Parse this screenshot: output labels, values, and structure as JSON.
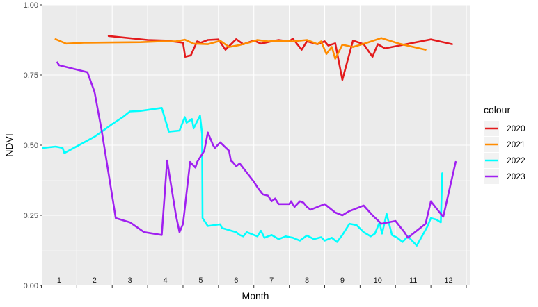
{
  "chart_data": {
    "type": "line",
    "xlabel": "Month",
    "ylabel": "NDVI",
    "ylim": [
      0,
      1
    ],
    "y_ticks": [
      "0.00",
      "0.25",
      "0.50",
      "0.75",
      "1.00"
    ],
    "y_tick_values": [
      0,
      0.25,
      0.5,
      0.75,
      1.0
    ],
    "x_range": [
      0.55,
      12.5
    ],
    "x_ticks": [
      "1",
      "2",
      "3",
      "4",
      "5",
      "6",
      "7",
      "8",
      "9",
      "10",
      "11",
      "12"
    ],
    "x_tick_values": [
      1,
      2,
      3,
      4,
      5,
      6,
      7,
      8,
      9,
      10,
      11,
      12
    ],
    "grid": true,
    "legend": {
      "title": "colour",
      "position": "right"
    },
    "series": [
      {
        "name": "2020",
        "color": "#E31A1C",
        "points": [
          [
            2.4,
            0.889
          ],
          [
            3.5,
            0.875
          ],
          [
            4.0,
            0.873
          ],
          [
            4.5,
            0.865
          ],
          [
            4.56,
            0.815
          ],
          [
            4.72,
            0.82
          ],
          [
            4.9,
            0.87
          ],
          [
            5.0,
            0.865
          ],
          [
            5.2,
            0.875
          ],
          [
            5.5,
            0.877
          ],
          [
            5.7,
            0.84
          ],
          [
            6.0,
            0.878
          ],
          [
            6.2,
            0.86
          ],
          [
            6.5,
            0.873
          ],
          [
            6.7,
            0.862
          ],
          [
            7.0,
            0.87
          ],
          [
            7.2,
            0.875
          ],
          [
            7.5,
            0.87
          ],
          [
            7.6,
            0.88
          ],
          [
            7.85,
            0.84
          ],
          [
            8.0,
            0.87
          ],
          [
            8.3,
            0.86
          ],
          [
            8.5,
            0.87
          ],
          [
            8.6,
            0.855
          ],
          [
            8.8,
            0.863
          ],
          [
            9.0,
            0.733
          ],
          [
            9.3,
            0.873
          ],
          [
            9.6,
            0.86
          ],
          [
            9.85,
            0.815
          ],
          [
            10.0,
            0.86
          ],
          [
            10.2,
            0.845
          ],
          [
            10.6,
            0.855
          ],
          [
            11.5,
            0.877
          ],
          [
            12.1,
            0.86
          ]
        ]
      },
      {
        "name": "2021",
        "color": "#FF8C00",
        "points": [
          [
            0.9,
            0.878
          ],
          [
            1.2,
            0.862
          ],
          [
            1.7,
            0.865
          ],
          [
            2.5,
            0.866
          ],
          [
            3.3,
            0.867
          ],
          [
            3.9,
            0.87
          ],
          [
            4.3,
            0.87
          ],
          [
            4.55,
            0.876
          ],
          [
            4.8,
            0.862
          ],
          [
            5.2,
            0.86
          ],
          [
            5.55,
            0.872
          ],
          [
            5.8,
            0.85
          ],
          [
            6.1,
            0.857
          ],
          [
            6.4,
            0.867
          ],
          [
            6.6,
            0.875
          ],
          [
            6.9,
            0.87
          ],
          [
            7.2,
            0.872
          ],
          [
            7.6,
            0.87
          ],
          [
            8.0,
            0.875
          ],
          [
            8.3,
            0.86
          ],
          [
            8.4,
            0.87
          ],
          [
            8.55,
            0.825
          ],
          [
            8.7,
            0.85
          ],
          [
            8.8,
            0.808
          ],
          [
            9.0,
            0.858
          ],
          [
            9.3,
            0.85
          ],
          [
            9.7,
            0.865
          ],
          [
            10.1,
            0.882
          ],
          [
            10.6,
            0.862
          ],
          [
            11.35,
            0.84
          ]
        ]
      },
      {
        "name": "2022",
        "color": "#00FFFF",
        "points": [
          [
            0.55,
            0.49
          ],
          [
            0.9,
            0.495
          ],
          [
            1.1,
            0.49
          ],
          [
            1.15,
            0.472
          ],
          [
            2.0,
            0.53
          ],
          [
            2.5,
            0.575
          ],
          [
            2.8,
            0.6
          ],
          [
            3.0,
            0.62
          ],
          [
            3.3,
            0.622
          ],
          [
            3.9,
            0.633
          ],
          [
            4.1,
            0.548
          ],
          [
            4.4,
            0.552
          ],
          [
            4.55,
            0.6
          ],
          [
            4.6,
            0.58
          ],
          [
            4.75,
            0.593
          ],
          [
            4.8,
            0.56
          ],
          [
            4.98,
            0.605
          ],
          [
            5.04,
            0.54
          ],
          [
            5.05,
            0.24
          ],
          [
            5.2,
            0.212
          ],
          [
            5.55,
            0.218
          ],
          [
            5.6,
            0.205
          ],
          [
            6.0,
            0.19
          ],
          [
            6.1,
            0.18
          ],
          [
            6.2,
            0.175
          ],
          [
            6.3,
            0.19
          ],
          [
            6.6,
            0.175
          ],
          [
            6.7,
            0.195
          ],
          [
            6.8,
            0.17
          ],
          [
            7.0,
            0.18
          ],
          [
            7.2,
            0.165
          ],
          [
            7.4,
            0.175
          ],
          [
            7.6,
            0.17
          ],
          [
            7.8,
            0.16
          ],
          [
            8.0,
            0.178
          ],
          [
            8.2,
            0.165
          ],
          [
            8.4,
            0.172
          ],
          [
            8.5,
            0.16
          ],
          [
            8.7,
            0.17
          ],
          [
            8.85,
            0.155
          ],
          [
            9.0,
            0.18
          ],
          [
            9.2,
            0.22
          ],
          [
            9.4,
            0.215
          ],
          [
            9.6,
            0.19
          ],
          [
            9.8,
            0.175
          ],
          [
            9.92,
            0.185
          ],
          [
            10.05,
            0.225
          ],
          [
            10.12,
            0.185
          ],
          [
            10.25,
            0.255
          ],
          [
            10.4,
            0.18
          ],
          [
            10.55,
            0.17
          ],
          [
            10.7,
            0.155
          ],
          [
            10.85,
            0.175
          ],
          [
            11.1,
            0.142
          ],
          [
            11.4,
            0.21
          ],
          [
            11.5,
            0.24
          ],
          [
            11.65,
            0.235
          ],
          [
            11.78,
            0.225
          ],
          [
            11.82,
            0.4
          ]
        ]
      },
      {
        "name": "2023",
        "color": "#A020F0",
        "points": [
          [
            0.95,
            0.795
          ],
          [
            1.0,
            0.785
          ],
          [
            1.8,
            0.76
          ],
          [
            2.0,
            0.69
          ],
          [
            2.2,
            0.555
          ],
          [
            2.6,
            0.24
          ],
          [
            3.0,
            0.225
          ],
          [
            3.4,
            0.19
          ],
          [
            3.9,
            0.18
          ],
          [
            4.05,
            0.445
          ],
          [
            4.3,
            0.25
          ],
          [
            4.4,
            0.19
          ],
          [
            4.5,
            0.22
          ],
          [
            4.7,
            0.44
          ],
          [
            4.85,
            0.42
          ],
          [
            4.9,
            0.44
          ],
          [
            5.1,
            0.48
          ],
          [
            5.2,
            0.545
          ],
          [
            5.35,
            0.5
          ],
          [
            5.4,
            0.49
          ],
          [
            5.55,
            0.51
          ],
          [
            5.8,
            0.48
          ],
          [
            5.85,
            0.445
          ],
          [
            5.9,
            0.44
          ],
          [
            6.0,
            0.425
          ],
          [
            6.1,
            0.435
          ],
          [
            6.5,
            0.37
          ],
          [
            6.6,
            0.35
          ],
          [
            6.75,
            0.325
          ],
          [
            6.9,
            0.32
          ],
          [
            7.0,
            0.3
          ],
          [
            7.1,
            0.31
          ],
          [
            7.2,
            0.29
          ],
          [
            7.5,
            0.29
          ],
          [
            7.55,
            0.3
          ],
          [
            7.65,
            0.28
          ],
          [
            7.8,
            0.3
          ],
          [
            7.9,
            0.295
          ],
          [
            8.0,
            0.28
          ],
          [
            8.1,
            0.27
          ],
          [
            8.5,
            0.29
          ],
          [
            8.8,
            0.26
          ],
          [
            9.0,
            0.25
          ],
          [
            9.2,
            0.265
          ],
          [
            9.5,
            0.28
          ],
          [
            9.6,
            0.285
          ],
          [
            9.85,
            0.25
          ],
          [
            10.1,
            0.22
          ],
          [
            10.3,
            0.225
          ],
          [
            10.5,
            0.23
          ],
          [
            10.75,
            0.19
          ],
          [
            10.85,
            0.17
          ],
          [
            11.05,
            0.19
          ],
          [
            11.35,
            0.22
          ],
          [
            11.5,
            0.3
          ],
          [
            11.75,
            0.26
          ],
          [
            11.85,
            0.245
          ],
          [
            12.2,
            0.44
          ]
        ]
      }
    ]
  }
}
